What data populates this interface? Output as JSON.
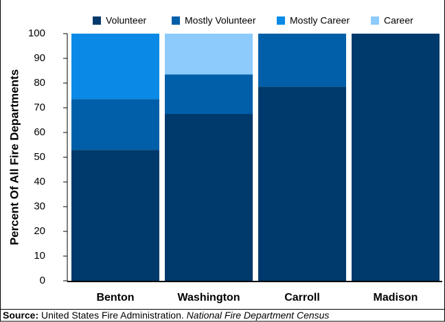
{
  "chart_data": {
    "type": "stacked_bar",
    "y_label": "Percent Of All Fire Departments",
    "categories": [
      "Benton",
      "Washington",
      "Carroll",
      "Madison"
    ],
    "series": [
      {
        "name": "Volunteer",
        "color": "#00396b",
        "values": [
          53,
          67.5,
          78.5,
          100
        ]
      },
      {
        "name": "Mostly Volunteer",
        "color": "#005fa8",
        "values": [
          20.5,
          16,
          21.5,
          0
        ]
      },
      {
        "name": "Mostly Career",
        "color": "#0a8ae6",
        "values": [
          26.5,
          0,
          0,
          0
        ]
      },
      {
        "name": "Career",
        "color": "#8dcbfd",
        "values": [
          0,
          16.5,
          0,
          0
        ]
      }
    ],
    "ylim": [
      0,
      100
    ],
    "yticks": [
      0,
      10,
      20,
      30,
      40,
      50,
      60,
      70,
      80,
      90,
      100
    ],
    "legend": "top"
  },
  "source": {
    "label": "Source:",
    "text": "United States Fire Administration.",
    "italic": "National Fire Department Census"
  }
}
